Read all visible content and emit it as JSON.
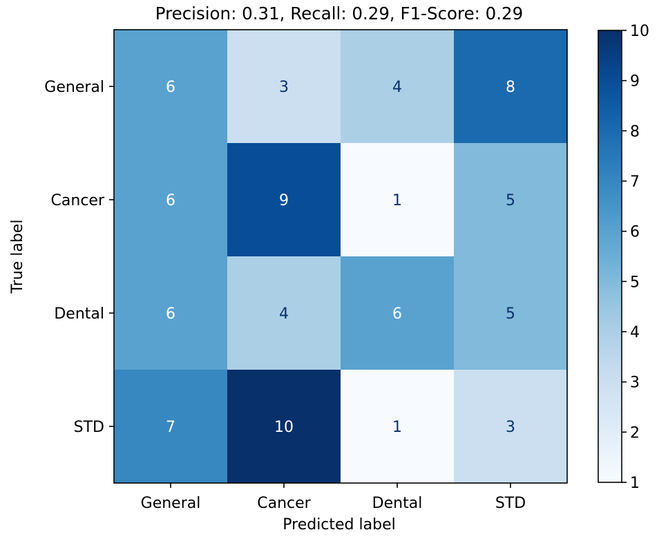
{
  "chart_data": {
    "type": "heatmap",
    "title": "Precision: 0.31, Recall: 0.29, F1-Score: 0.29",
    "xlabel": "Predicted label",
    "ylabel": "True label",
    "x_categories": [
      "General",
      "Cancer",
      "Dental",
      "STD"
    ],
    "y_categories": [
      "General",
      "Cancer",
      "Dental",
      "STD"
    ],
    "values": [
      [
        6,
        3,
        4,
        8
      ],
      [
        6,
        9,
        1,
        5
      ],
      [
        6,
        4,
        6,
        5
      ],
      [
        7,
        10,
        1,
        3
      ]
    ],
    "colormap": "Blues",
    "colorbar": {
      "min": 1,
      "max": 10,
      "ticks": [
        "1",
        "2",
        "3",
        "4",
        "5",
        "6",
        "7",
        "8",
        "9",
        "10"
      ]
    },
    "grid": false
  }
}
